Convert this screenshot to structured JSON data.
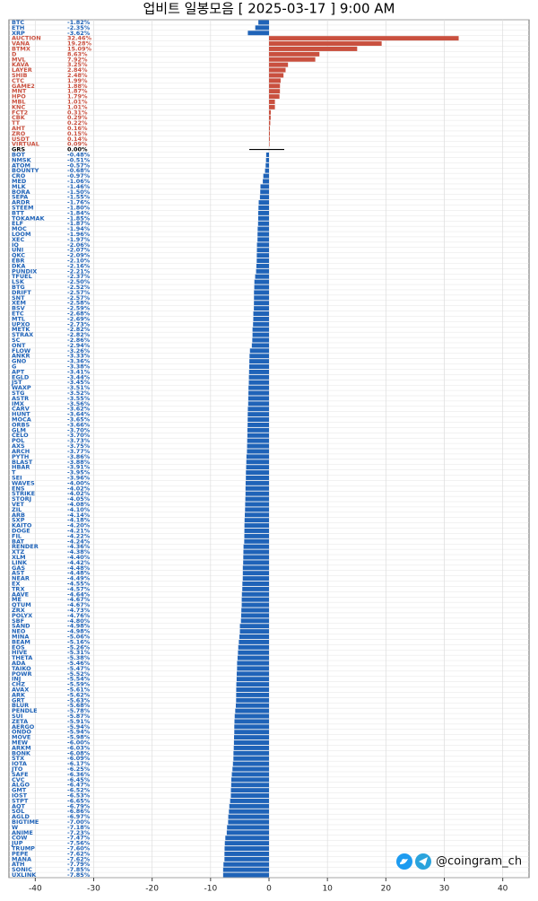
{
  "chart_data": {
    "type": "barh",
    "title": "업비트 일봉모음 [ 2025-03-17 ]  9:00 AM",
    "watermark": "@coingram_ch",
    "categories": [
      "BTC",
      "ETH",
      "XRP",
      "AUCTION",
      "VANA",
      "BTMX",
      "D",
      "MVL",
      "KAVA",
      "LAYER",
      "SHIB",
      "CTC",
      "GAME2",
      "MNT",
      "HPO",
      "MBL",
      "KNC",
      "FCT2",
      "CBK",
      "TT",
      "AHT",
      "ZRO",
      "USDT",
      "VIRTUAL",
      "GRS",
      "BOT",
      "NMSK",
      "ATOM",
      "BOUNTY",
      "CRO",
      "MED",
      "MLK",
      "BORA",
      "SEPA",
      "ARDR",
      "STEEM",
      "BTT",
      "TOKAMAK",
      "ELF",
      "MOC",
      "LOOM",
      "XEC",
      "IQ",
      "UNI",
      "QKC",
      "EBR",
      "DKA",
      "PUNDIX",
      "TFUEL",
      "LSK",
      "BTG",
      "DRIFT",
      "SNT",
      "XEM",
      "BSV",
      "ETC",
      "MTL",
      "UPXO",
      "METK",
      "STRAX",
      "SC",
      "ONT",
      "FLOW",
      "ANKR",
      "GNO",
      "G",
      "APT",
      "EGLD",
      "JST",
      "WAXP",
      "STG",
      "ASTR",
      "IMX",
      "CARV",
      "HUNT",
      "MOCA",
      "ORBS",
      "GLM",
      "CELO",
      "POL",
      "AXS",
      "ARCH",
      "PYTH",
      "BLAST",
      "HBAR",
      "T",
      "SEI",
      "WAVES",
      "ENS",
      "STRIKE",
      "STORJ",
      "VET",
      "ZIL",
      "ARB",
      "SXP",
      "KAITO",
      "DOGE",
      "FIL",
      "BAT",
      "RENDER",
      "XTZ",
      "XLM",
      "LINK",
      "GAS",
      "AST",
      "NEAR",
      "EX",
      "TRX",
      "AAVE",
      "ME",
      "QTUM",
      "ZRX",
      "POLYX",
      "SBF",
      "SAND",
      "NEO",
      "MINA",
      "BEAM",
      "EOS",
      "HIVE",
      "THETA",
      "ADA",
      "TAIKO",
      "POWR",
      "INJ",
      "CHZ",
      "AVAX",
      "ARK",
      "GRT",
      "BLUR",
      "PENDLE",
      "SUI",
      "ZETA",
      "AERGO",
      "ONDO",
      "MOVE",
      "MEW",
      "ARKM",
      "BONK",
      "STX",
      "IOTA",
      "JTO",
      "SAFE",
      "CVC",
      "ALGO",
      "GMT",
      "IOST",
      "STPT",
      "AQT",
      "SOL",
      "AGLD",
      "BIGTIME",
      "W",
      "ANIME",
      "COW",
      "JUP",
      "TRUMP",
      "PEPE",
      "MANA",
      "ATH",
      "SONIC",
      "UXLINK"
    ],
    "values": [
      -1.82,
      -2.35,
      -3.62,
      32.46,
      19.28,
      15.09,
      8.63,
      7.92,
      3.25,
      2.84,
      2.48,
      1.99,
      1.88,
      1.87,
      1.79,
      1.01,
      1.01,
      0.31,
      0.29,
      0.22,
      0.16,
      0.15,
      0.14,
      0.09,
      0.0,
      -0.48,
      -0.51,
      -0.57,
      -0.68,
      -0.97,
      -1.06,
      -1.46,
      -1.5,
      -1.55,
      -1.76,
      -1.8,
      -1.84,
      -1.85,
      -1.87,
      -1.94,
      -1.96,
      -1.97,
      -2.06,
      -2.07,
      -2.09,
      -2.1,
      -2.16,
      -2.21,
      -2.37,
      -2.5,
      -2.52,
      -2.57,
      -2.57,
      -2.58,
      -2.59,
      -2.68,
      -2.69,
      -2.73,
      -2.82,
      -2.82,
      -2.86,
      -2.94,
      -3.26,
      -3.33,
      -3.36,
      -3.38,
      -3.41,
      -3.44,
      -3.45,
      -3.51,
      -3.52,
      -3.55,
      -3.56,
      -3.62,
      -3.64,
      -3.65,
      -3.66,
      -3.7,
      -3.7,
      -3.73,
      -3.75,
      -3.77,
      -3.86,
      -3.88,
      -3.91,
      -3.95,
      -3.96,
      -4.0,
      -4.02,
      -4.02,
      -4.05,
      -4.08,
      -4.1,
      -4.14,
      -4.18,
      -4.2,
      -4.21,
      -4.22,
      -4.24,
      -4.36,
      -4.38,
      -4.4,
      -4.42,
      -4.48,
      -4.48,
      -4.49,
      -4.55,
      -4.57,
      -4.64,
      -4.67,
      -4.67,
      -4.73,
      -4.76,
      -4.8,
      -4.98,
      -4.98,
      -5.06,
      -5.16,
      -5.26,
      -5.31,
      -5.38,
      -5.46,
      -5.47,
      -5.52,
      -5.54,
      -5.59,
      -5.61,
      -5.62,
      -5.63,
      -5.68,
      -5.78,
      -5.87,
      -5.91,
      -5.94,
      -5.94,
      -5.98,
      -6.0,
      -6.03,
      -6.08,
      -6.09,
      -6.17,
      -6.25,
      -6.36,
      -6.45,
      -6.47,
      -6.52,
      -6.53,
      -6.65,
      -6.79,
      -6.86,
      -6.97,
      -7.0,
      -7.18,
      -7.23,
      -7.47,
      -7.56,
      -7.6,
      -7.62,
      -7.62,
      -7.79,
      -7.85,
      -7.85
    ],
    "value_labels": [
      "-1.82%",
      "-2.35%",
      "-3.62%",
      "32.46%",
      "19.28%",
      "15.09%",
      "8.63%",
      "7.92%",
      "3.25%",
      "2.84%",
      "2.48%",
      "1.99%",
      "1.88%",
      "1.87%",
      "1.79%",
      "1.01%",
      "1.01%",
      "0.31%",
      "0.29%",
      "0.22%",
      "0.16%",
      "0.15%",
      "0.14%",
      "0.09%",
      "0.00%",
      "-0.48%",
      "-0.51%",
      "-0.57%",
      "-0.68%",
      "-0.97%",
      "-1.06%",
      "-1.46%",
      "-1.50%",
      "-1.55%",
      "-1.76%",
      "-1.80%",
      "-1.84%",
      "-1.85%",
      "-1.87%",
      "-1.94%",
      "-1.96%",
      "-1.97%",
      "-2.06%",
      "-2.07%",
      "-2.09%",
      "-2.10%",
      "-2.16%",
      "-2.21%",
      "-2.37%",
      "-2.50%",
      "-2.52%",
      "-2.57%",
      "-2.57%",
      "-2.58%",
      "-2.59%",
      "-2.68%",
      "-2.69%",
      "-2.73%",
      "-2.82%",
      "-2.82%",
      "-2.86%",
      "-2.94%",
      "-3.26%",
      "-3.33%",
      "-3.36%",
      "-3.38%",
      "-3.41%",
      "-3.44%",
      "-3.45%",
      "-3.51%",
      "-3.52%",
      "-3.55%",
      "-3.56%",
      "-3.62%",
      "-3.64%",
      "-3.65%",
      "-3.66%",
      "-3.70%",
      "-3.70%",
      "-3.73%",
      "-3.75%",
      "-3.77%",
      "-3.86%",
      "-3.88%",
      "-3.91%",
      "-3.95%",
      "-3.96%",
      "-4.00%",
      "-4.02%",
      "-4.02%",
      "-4.05%",
      "-4.08%",
      "-4.10%",
      "-4.14%",
      "-4.18%",
      "-4.20%",
      "-4.21%",
      "-4.22%",
      "-4.24%",
      "-4.36%",
      "-4.38%",
      "-4.40%",
      "-4.42%",
      "-4.48%",
      "-4.48%",
      "-4.49%",
      "-4.55%",
      "-4.57%",
      "-4.64%",
      "-4.67%",
      "-4.67%",
      "-4.73%",
      "-4.76%",
      "-4.80%",
      "-4.98%",
      "-4.98%",
      "-5.06%",
      "-5.16%",
      "-5.26%",
      "-5.31%",
      "-5.38%",
      "-5.46%",
      "-5.47%",
      "-5.52%",
      "-5.54%",
      "-5.59%",
      "-5.61%",
      "-5.62%",
      "-5.63%",
      "-5.68%",
      "-5.78%",
      "-5.87%",
      "-5.91%",
      "-5.94%",
      "-5.94%",
      "-5.98%",
      "-6.00%",
      "-6.03%",
      "-6.08%",
      "-6.09%",
      "-6.17%",
      "-6.25%",
      "-6.36%",
      "-6.45%",
      "-6.47%",
      "-6.52%",
      "-6.53%",
      "-6.65%",
      "-6.79%",
      "-6.86%",
      "-6.97%",
      "-7.00%",
      "-7.18%",
      "-7.23%",
      "-7.47%",
      "-7.56%",
      "-7.60%",
      "-7.62%",
      "-7.62%",
      "-7.79%",
      "-7.85%",
      "-7.85%"
    ],
    "positive_color": "#c9503f",
    "negative_color": "#1f63b8",
    "zero_color": "#000000",
    "xlim": [
      -44.5,
      44.5
    ],
    "xticks": [
      -40,
      -30,
      -20,
      -10,
      0,
      10,
      20,
      30,
      40
    ],
    "grid": true
  }
}
